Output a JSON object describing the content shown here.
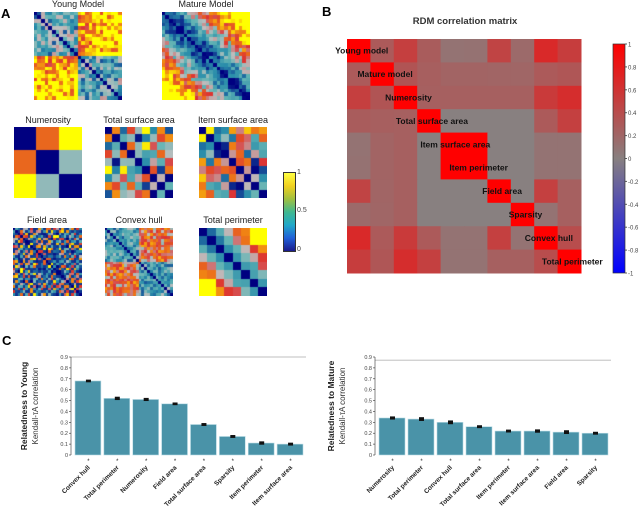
{
  "panels": {
    "a": "A",
    "b": "B",
    "c": "C"
  },
  "panel_a": {
    "titles": [
      "Young Model",
      "Mature Model",
      "Numerosity",
      "Total surface area",
      "Item surface area",
      "Field area",
      "Convex hull",
      "Total perimeter"
    ],
    "numerosity_matrix": [
      [
        0,
        0.8,
        1
      ],
      [
        0.8,
        0,
        0.5
      ],
      [
        1,
        0.5,
        0
      ]
    ],
    "colorbar_ticks": [
      "1",
      "0.5",
      "0"
    ],
    "colorbar_range": [
      0,
      1
    ]
  },
  "chart_data": [
    {
      "type": "heatmap",
      "title": "RDM correlation matrix",
      "labels": [
        "Young model",
        "Mature model",
        "Numerosity",
        "Total surface area",
        "Item surface area",
        "Item perimeter",
        "Field area",
        "Sparsity",
        "Convex hull",
        "Total perimeter"
      ],
      "values": [
        [
          1,
          0.3,
          0.51,
          0.28,
          0.1,
          0.11,
          0.47,
          0.17,
          0.68,
          0.52
        ],
        [
          0.3,
          1,
          0.34,
          0.26,
          0.22,
          0.22,
          0.21,
          0.2,
          0.3,
          0.33
        ],
        [
          0.51,
          0.34,
          1,
          0.25,
          0.25,
          0.25,
          0.25,
          0.25,
          0.55,
          0.65
        ],
        [
          0.28,
          0.26,
          0.25,
          1,
          0,
          0,
          0,
          0,
          0.3,
          0.5
        ],
        [
          0.1,
          0.22,
          0.25,
          0,
          1,
          1,
          0,
          0,
          0.1,
          0.1
        ],
        [
          0.11,
          0.22,
          0.25,
          0,
          1,
          1,
          0,
          0,
          0.1,
          0.1
        ],
        [
          0.47,
          0.21,
          0.25,
          0,
          0,
          0,
          1,
          0,
          0.5,
          0.25
        ],
        [
          0.17,
          0.2,
          0.25,
          0,
          0,
          0,
          0,
          1,
          0.1,
          0.25
        ],
        [
          0.68,
          0.3,
          0.55,
          0.3,
          0.1,
          0.1,
          0.5,
          0.1,
          1,
          0.4
        ],
        [
          0.52,
          0.33,
          0.65,
          0.5,
          0.1,
          0.1,
          0.25,
          0.25,
          0.4,
          1
        ]
      ],
      "colorbar_ticks": [
        "1",
        "0.8",
        "0.6",
        "0.4",
        "0.2",
        "0",
        "-0.2",
        "-0.4",
        "-0.6",
        "-0.8",
        "-1"
      ],
      "range": [
        -1,
        1
      ],
      "colors": {
        "low": "#0000ff",
        "mid": "#888080",
        "high": "#ff0000"
      }
    },
    {
      "type": "bar",
      "ylabel": "Relatedness to Young",
      "ylabel2": "Kendall-τA correlation",
      "categories": [
        "Convex hull",
        "Total perimeter",
        "Numerosity",
        "Field area",
        "Total surface area",
        "Sparsity",
        "Item perimeter",
        "Item surface area"
      ],
      "values": [
        0.68,
        0.52,
        0.51,
        0.47,
        0.28,
        0.17,
        0.11,
        0.1
      ],
      "errors": [
        0.005,
        0.008,
        0.007,
        0.005,
        0.006,
        0.006,
        0.008,
        0.006
      ],
      "significance": [
        "*",
        "*",
        "*",
        "*",
        "*",
        "*",
        "*",
        "*"
      ],
      "yticks": [
        "0",
        "0.1",
        "0.2",
        "0.3",
        "0.4",
        "0.5",
        "0.6",
        "0.7",
        "0.8",
        "0.9"
      ],
      "ylim": [
        0,
        0.9
      ],
      "ceiling": 0.9,
      "bar_color": "#4a93a8"
    },
    {
      "type": "bar",
      "ylabel": "Relatedness to Mature",
      "ylabel2": "Kendall-τA correlation",
      "categories": [
        "Numerosity",
        "Total perimeter",
        "Convex hull",
        "Total surface area",
        "Item perimeter",
        "Item surface area",
        "Field area",
        "Sparsity"
      ],
      "values": [
        0.34,
        0.33,
        0.3,
        0.26,
        0.22,
        0.22,
        0.21,
        0.2
      ],
      "errors": [
        0.007,
        0.01,
        0.01,
        0.006,
        0.006,
        0.008,
        0.01,
        0.006
      ],
      "significance": [
        "*",
        "*",
        "*",
        "*",
        "*",
        "*",
        "*",
        "*"
      ],
      "yticks": [
        "0",
        "0.1",
        "0.2",
        "0.3",
        "0.4",
        "0.5",
        "0.6",
        "0.7",
        "0.8",
        "0.9"
      ],
      "ylim": [
        0,
        0.9
      ],
      "ceiling": 0.87,
      "bar_color": "#4a93a8"
    }
  ]
}
